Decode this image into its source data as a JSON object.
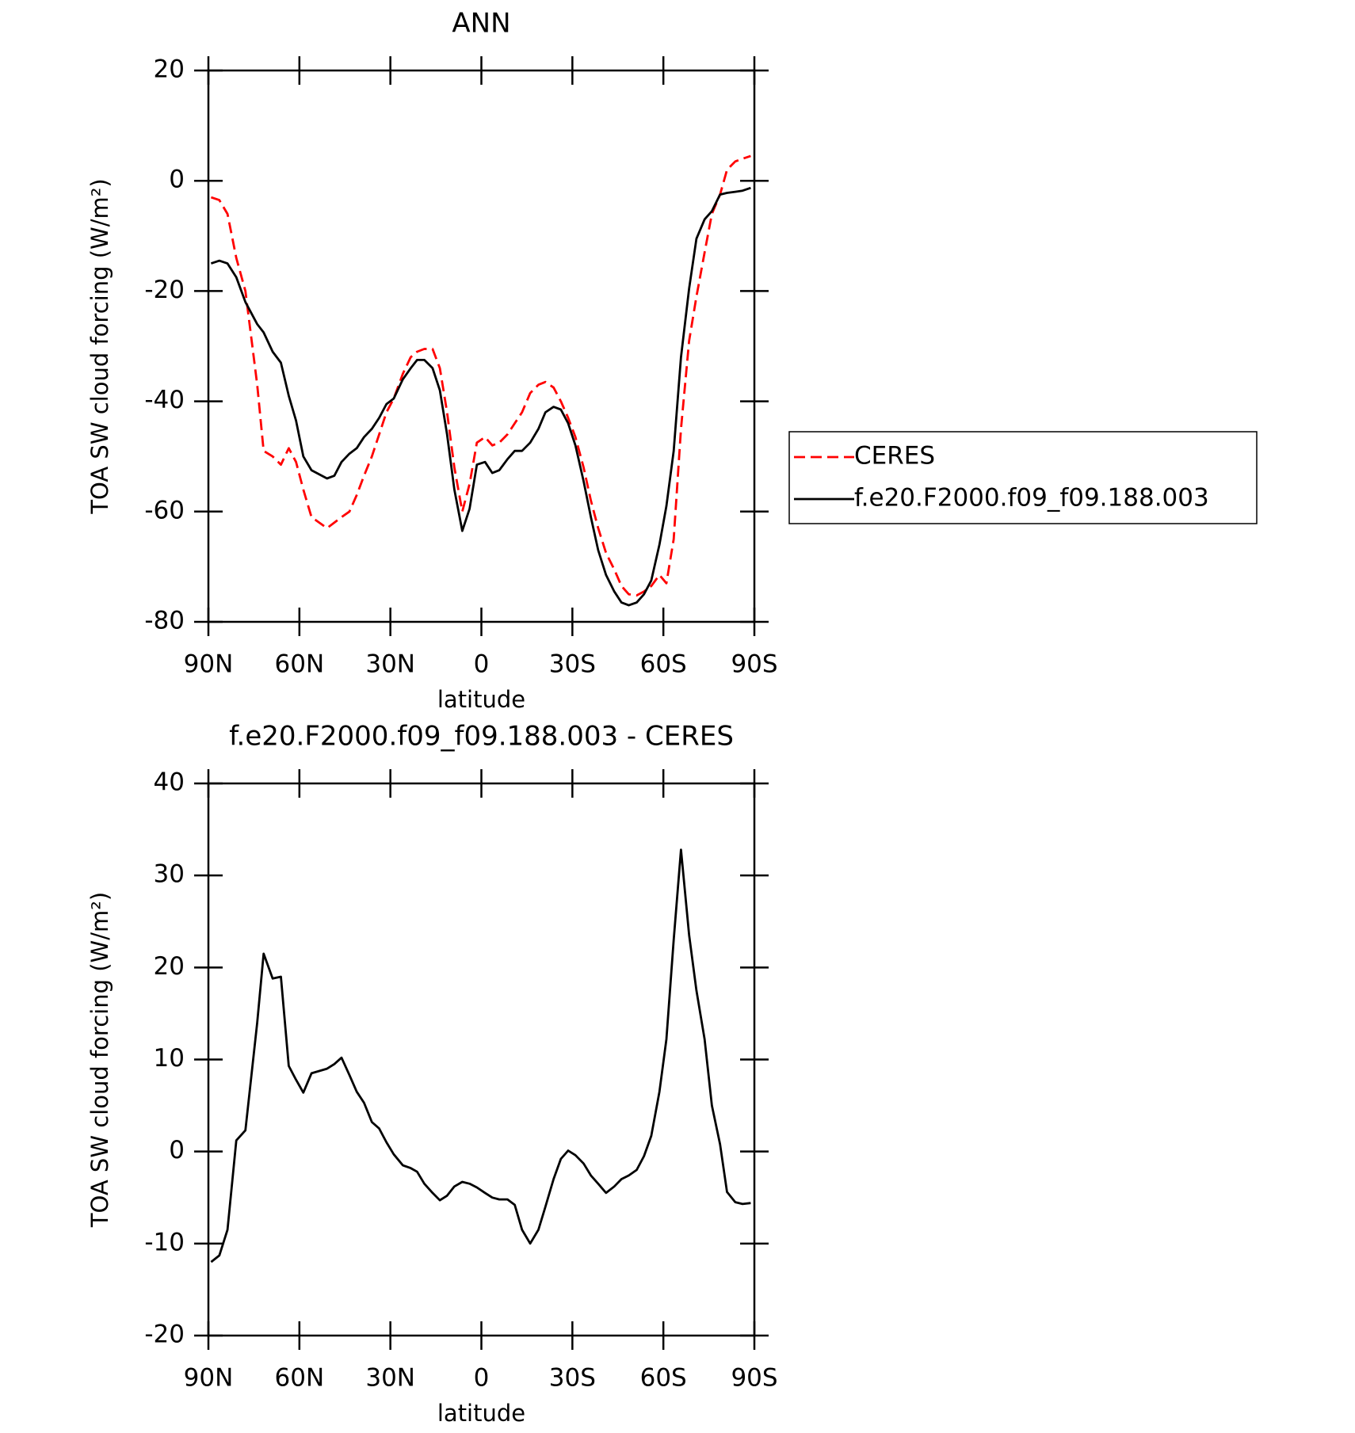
{
  "chart_data": [
    {
      "type": "line",
      "title": "ANN",
      "xlabel": "latitude",
      "ylabel": "TOA SW cloud forcing (W/m²)",
      "x": [
        89.1,
        86.4,
        83.7,
        80.8,
        77.8,
        73.9,
        71.8,
        68.8,
        66.1,
        63.5,
        61.1,
        58.7,
        56.0,
        50.9,
        48.5,
        46.1,
        43.5,
        41.1,
        38.7,
        36.1,
        33.7,
        31.3,
        28.9,
        25.9,
        23.3,
        21.2,
        18.8,
        16.1,
        13.7,
        11.3,
        8.9,
        6.3,
        3.9,
        1.5,
        -1.2,
        -3.6,
        -5.9,
        -8.6,
        -11.0,
        -13.4,
        -16.1,
        -18.8,
        -21.1,
        -23.8,
        -26.2,
        -28.6,
        -31.0,
        -33.7,
        -36.1,
        -38.5,
        -41.1,
        -43.8,
        -46.2,
        -48.6,
        -51.2,
        -53.6,
        -56.0,
        -58.7,
        -61.0,
        -63.4,
        -65.8,
        -68.5,
        -70.9,
        -73.6,
        -76.0,
        -78.7,
        -81.0,
        -83.7,
        -86.1,
        -88.8
      ],
      "xlim": [
        90,
        -90
      ],
      "xticks": [
        {
          "value": 90,
          "label": "90N"
        },
        {
          "value": 60,
          "label": "60N"
        },
        {
          "value": 30,
          "label": "30N"
        },
        0,
        {
          "value": -30,
          "label": "30S"
        },
        {
          "value": -60,
          "label": "60S"
        },
        {
          "value": -90,
          "label": "90S"
        }
      ],
      "ylim": [
        -80,
        20
      ],
      "yticks": [
        20,
        0,
        -20,
        -40,
        -60,
        -80
      ],
      "legend": "right",
      "series": [
        {
          "name": "CERES",
          "color": "#ff0000",
          "style": "dashed",
          "values": [
            -3,
            -3.5,
            -6,
            -14,
            -20,
            -37,
            -49,
            -50,
            -51.5,
            -48.5,
            -51,
            -56,
            -61,
            -63,
            -62,
            -61,
            -60,
            -57,
            -53.5,
            -50,
            -46,
            -42,
            -39.5,
            -35,
            -32,
            -31,
            -30.5,
            -30.5,
            -34,
            -42,
            -52,
            -60,
            -55,
            -47.5,
            -46.5,
            -48,
            -47.5,
            -46,
            -44,
            -42,
            -38.5,
            -37,
            -36.5,
            -37.5,
            -40,
            -43,
            -46.5,
            -52,
            -58,
            -63,
            -67.5,
            -70.5,
            -73.5,
            -75,
            -75.2,
            -74.5,
            -73.5,
            -71.5,
            -73,
            -65,
            -45,
            -29,
            -21,
            -13,
            -6,
            -2.5,
            2,
            3.5,
            4,
            4.5
          ]
        },
        {
          "name": "f.e20.F2000.f09_f09.188.003",
          "color": "#000000",
          "style": "solid",
          "values": [
            -15,
            -14.5,
            -15,
            -17.5,
            -22,
            -26,
            -27.5,
            -31,
            -33,
            -39,
            -43.5,
            -50,
            -52.5,
            -54,
            -53.5,
            -51,
            -49.5,
            -48.5,
            -46.5,
            -45,
            -43,
            -40.5,
            -39.5,
            -36,
            -34,
            -32.5,
            -32.5,
            -34,
            -38,
            -46,
            -56,
            -63.5,
            -59.5,
            -51.5,
            -51,
            -53,
            -52.5,
            -50.5,
            -49,
            -49,
            -47.5,
            -45,
            -42,
            -41,
            -41.5,
            -44,
            -48,
            -54.5,
            -61,
            -67,
            -71.5,
            -74.5,
            -76.5,
            -77,
            -76.5,
            -75,
            -72.5,
            -66,
            -59,
            -49,
            -32,
            -19.5,
            -10.5,
            -7,
            -5.5,
            -2.5,
            -2.2,
            -2,
            -1.8,
            -1.3
          ]
        }
      ]
    },
    {
      "type": "line",
      "title": "f.e20.F2000.f09_f09.188.003 - CERES",
      "xlabel": "latitude",
      "ylabel": "TOA SW cloud forcing (W/m²)",
      "x": [
        89.1,
        86.4,
        83.7,
        80.8,
        77.8,
        73.9,
        71.8,
        68.8,
        66.1,
        63.5,
        61.1,
        58.7,
        56.0,
        50.9,
        48.5,
        46.1,
        43.5,
        41.1,
        38.7,
        36.1,
        33.7,
        31.3,
        28.9,
        25.9,
        23.3,
        21.2,
        18.8,
        16.1,
        13.7,
        11.3,
        8.9,
        6.3,
        3.9,
        1.5,
        -1.2,
        -3.6,
        -5.9,
        -8.6,
        -11.0,
        -13.4,
        -16.1,
        -18.8,
        -21.1,
        -23.8,
        -26.2,
        -28.6,
        -31.0,
        -33.7,
        -36.1,
        -38.5,
        -41.1,
        -43.8,
        -46.2,
        -48.6,
        -51.2,
        -53.6,
        -56.0,
        -58.7,
        -61.0,
        -63.4,
        -65.8,
        -68.5,
        -70.9,
        -73.6,
        -76.0,
        -78.7,
        -81.0,
        -83.7,
        -86.1,
        -88.8
      ],
      "xlim": [
        90,
        -90
      ],
      "xticks": [
        {
          "value": 90,
          "label": "90N"
        },
        {
          "value": 60,
          "label": "60N"
        },
        {
          "value": 30,
          "label": "30N"
        },
        0,
        {
          "value": -30,
          "label": "30S"
        },
        {
          "value": -60,
          "label": "60S"
        },
        {
          "value": -90,
          "label": "90S"
        }
      ],
      "ylim": [
        -20,
        40
      ],
      "yticks": [
        40,
        30,
        20,
        10,
        0,
        -10,
        -20
      ],
      "color": "#000000",
      "values": [
        -12,
        -11.3,
        -8.5,
        1.2,
        2.3,
        14,
        21.5,
        18.8,
        19,
        9.3,
        7.8,
        6.4,
        8.5,
        9.0,
        9.5,
        10.2,
        8.3,
        6.5,
        5.3,
        3.2,
        2.5,
        1.0,
        -0.3,
        -1.5,
        -1.8,
        -2.2,
        -3.5,
        -4.5,
        -5.3,
        -4.8,
        -3.8,
        -3.3,
        -3.5,
        -3.9,
        -4.5,
        -5.0,
        -5.2,
        -5.2,
        -5.8,
        -8.5,
        -10.0,
        -8.5,
        -6.0,
        -3.0,
        -0.8,
        0.1,
        -0.4,
        -1.3,
        -2.6,
        -3.5,
        -4.5,
        -3.8,
        -3.0,
        -2.6,
        -2.0,
        -0.5,
        1.7,
        6.5,
        12.2,
        23.0,
        32.8,
        23.5,
        17.5,
        12.2,
        5.0,
        0.8,
        -4.4,
        -5.5,
        -5.7,
        -5.6
      ]
    }
  ]
}
